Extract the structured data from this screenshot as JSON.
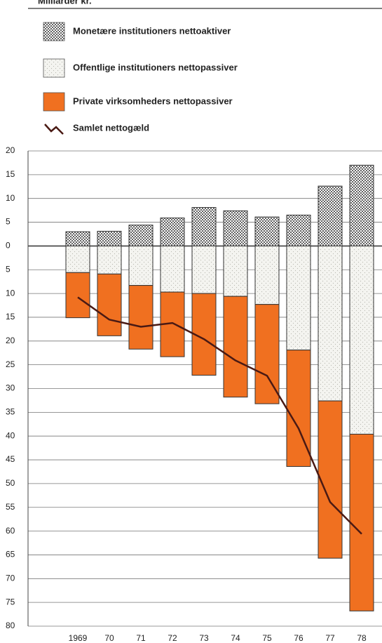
{
  "chart_data": {
    "type": "bar",
    "stacked": true,
    "title": "Milliarder kr.",
    "categories": [
      "1969",
      "70",
      "71",
      "72",
      "73",
      "74",
      "75",
      "76",
      "77",
      "78"
    ],
    "series": [
      {
        "name": "Monetære institutioners nettoaktiver",
        "type": "bar",
        "pattern": "dense-dots",
        "color": "#555555",
        "values": [
          3.0,
          3.1,
          4.4,
          5.9,
          8.1,
          7.4,
          6.1,
          6.5,
          12.6,
          17.0
        ]
      },
      {
        "name": "Offentlige institutioners nettopassiver",
        "type": "bar",
        "pattern": "sparse-dots",
        "color": "#b8b8b0",
        "values": [
          -5.6,
          -5.9,
          -8.3,
          -9.7,
          -10.0,
          -10.6,
          -12.3,
          -21.9,
          -32.6,
          -39.6
        ]
      },
      {
        "name": "Private virksomheders nettopassiver",
        "type": "bar",
        "color": "#f07020",
        "values": [
          -9.5,
          -13.0,
          -13.4,
          -13.6,
          -17.2,
          -21.2,
          -20.9,
          -24.5,
          -33.1,
          -37.2
        ]
      },
      {
        "name": "Samlet nettogæld",
        "type": "line",
        "color": "#4a1a14",
        "values": [
          -10.8,
          -15.5,
          -17.0,
          -16.2,
          -19.6,
          -24.1,
          -27.3,
          -38.4,
          -53.9,
          -60.6
        ]
      }
    ],
    "ylim": [
      -80,
      20
    ],
    "yticks": [
      20,
      15,
      10,
      5,
      0,
      {
        "value": -5,
        "label": "5"
      },
      {
        "value": -10,
        "label": "10"
      },
      {
        "value": -15,
        "label": "15"
      },
      {
        "value": -20,
        "label": "20"
      },
      {
        "value": -25,
        "label": "25"
      },
      {
        "value": -30,
        "label": "30"
      },
      {
        "value": -35,
        "label": "35"
      },
      {
        "value": -40,
        "label": "40"
      },
      {
        "value": -45,
        "label": "45"
      },
      {
        "value": -50,
        "label": "50"
      },
      {
        "value": -55,
        "label": "55"
      },
      {
        "value": -60,
        "label": "60"
      },
      {
        "value": -65,
        "label": "65"
      },
      {
        "value": -70,
        "label": "70"
      },
      {
        "value": -75,
        "label": "75"
      },
      {
        "value": -80,
        "label": "80"
      }
    ],
    "grid": true
  }
}
